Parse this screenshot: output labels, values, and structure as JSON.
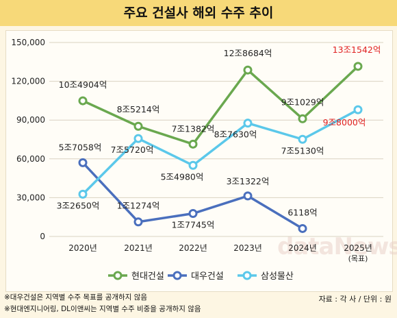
{
  "title": "주요 건설사 해외 수주 추이",
  "watermark": "dataNews",
  "footnotes": [
    "※대우건설은 지역별 수주 목표를 공개하지 않음",
    "※현대엔지니어링, DL이앤씨는 지역별 수주 비중을 공개하지 않음"
  ],
  "source": "자료 : 각 사 / 단위 : 원",
  "chart_data": {
    "type": "line",
    "title": "주요 건설사 해외 수주 추이",
    "categories": [
      "2020년",
      "2021년",
      "2022년",
      "2023년",
      "2024년",
      "2025년"
    ],
    "category_sublabels": [
      "",
      "",
      "",
      "",
      "",
      "(목표)"
    ],
    "ylim": [
      0,
      150000
    ],
    "yticks": [
      0,
      30000,
      60000,
      90000,
      120000,
      150000
    ],
    "ytick_labels": [
      "0",
      "30,000",
      "60,000",
      "90,000",
      "120,000",
      "150,000"
    ],
    "grid": true,
    "legend_position": "bottom",
    "series": [
      {
        "name": "현대건설",
        "color": "#6aa84f",
        "values": [
          104904,
          85214,
          71382,
          128684,
          91029,
          131542
        ],
        "labels": [
          "10조4904억",
          "8조5214억",
          "7조1382억",
          "12조8684억",
          "9조1029억",
          "13조1542억"
        ],
        "label_colors": [
          "#222222",
          "#222222",
          "#222222",
          "#222222",
          "#222222",
          "#e02020"
        ]
      },
      {
        "name": "대우건설",
        "color": "#4a6fbd",
        "values": [
          57058,
          11274,
          17745,
          31322,
          6118,
          null
        ],
        "labels": [
          "5조7058억",
          "1조1274억",
          "1조7745억",
          "3조1322억",
          "6118억",
          null
        ],
        "label_colors": [
          "#222222",
          "#222222",
          "#222222",
          "#222222",
          "#222222",
          "#222222"
        ]
      },
      {
        "name": "삼성물산",
        "color": "#5bc8ea",
        "values": [
          32650,
          75720,
          54980,
          87630,
          75130,
          98000
        ],
        "labels": [
          "3조2650억",
          "7조5720억",
          "5조4980억",
          "8조7630억",
          "7조5130억",
          "9조8000억"
        ],
        "label_colors": [
          "#222222",
          "#222222",
          "#222222",
          "#222222",
          "#222222",
          "#e02020"
        ]
      }
    ]
  }
}
